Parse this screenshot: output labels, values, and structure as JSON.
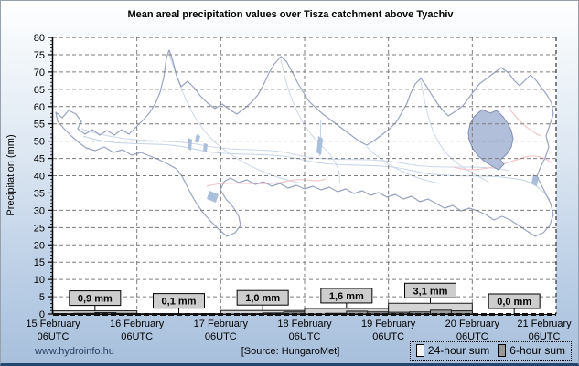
{
  "page": {
    "title": "Mean areal precipitation values over Tisza catchment above Tyachiv",
    "footer_left": "www.hydroinfo.hu",
    "footer_source": "[Source: HungaroMet]"
  },
  "legend": {
    "items": [
      {
        "label": "24-hour sum",
        "swatch_color": "#f4f4f4"
      },
      {
        "label": "6-hour sum",
        "swatch_color": "#989898"
      }
    ]
  },
  "chart_data": {
    "type": "bar",
    "title": "Mean areal precipitation values over Tisza catchment above Tyachiv",
    "xlabel": "",
    "ylabel": "Precipitation (mm)",
    "ylim": [
      0,
      80
    ],
    "ytick_step": 5,
    "grid": true,
    "legend_position": "bottom-right",
    "x_axis_ticks": [
      {
        "date": "15 February",
        "time": "06UTC"
      },
      {
        "date": "16 February",
        "time": "06UTC"
      },
      {
        "date": "17 February",
        "time": "06UTC"
      },
      {
        "date": "18 February",
        "time": "06UTC"
      },
      {
        "date": "19 February",
        "time": "06UTC"
      },
      {
        "date": "20 February",
        "time": "06UTC"
      },
      {
        "date": "21 February",
        "time": "06UTC"
      }
    ],
    "series_names": [
      "24-hour sum",
      "6-hour sum"
    ],
    "days": [
      {
        "range": "15-16 Feb 06UTC",
        "sum24h_mm": 0.9,
        "label": "0,9 mm",
        "six_hour_mm": [
          0.1,
          0.2,
          0.4,
          0.2
        ]
      },
      {
        "range": "16-17 Feb 06UTC",
        "sum24h_mm": 0.1,
        "label": "0,1 mm",
        "six_hour_mm": [
          0.0,
          0.1,
          0.0,
          0.0
        ]
      },
      {
        "range": "17-18 Feb 06UTC",
        "sum24h_mm": 1.0,
        "label": "1,0 mm",
        "six_hour_mm": [
          0.0,
          0.1,
          0.3,
          0.6
        ]
      },
      {
        "range": "18-19 Feb 06UTC",
        "sum24h_mm": 1.6,
        "label": "1,6 mm",
        "six_hour_mm": [
          0.0,
          0.2,
          0.8,
          0.6
        ]
      },
      {
        "range": "19-20 Feb 06UTC",
        "sum24h_mm": 3.1,
        "label": "3,1 mm",
        "six_hour_mm": [
          0.5,
          0.6,
          1.1,
          0.9
        ]
      },
      {
        "range": "20-21 Feb 06UTC",
        "sum24h_mm": 0.0,
        "label": "0,0 mm",
        "six_hour_mm": [
          0.0,
          0.0,
          0.0,
          0.0
        ]
      }
    ],
    "colors": {
      "bar_24h": "#d4d4d4",
      "bar_6h": "#9c9c9c",
      "bar_border": "#1a1a1a",
      "label_box_bg": "#cdcdcd",
      "grid": "#7d7d7d",
      "highlight_fill": "#a8b8d6"
    }
  }
}
